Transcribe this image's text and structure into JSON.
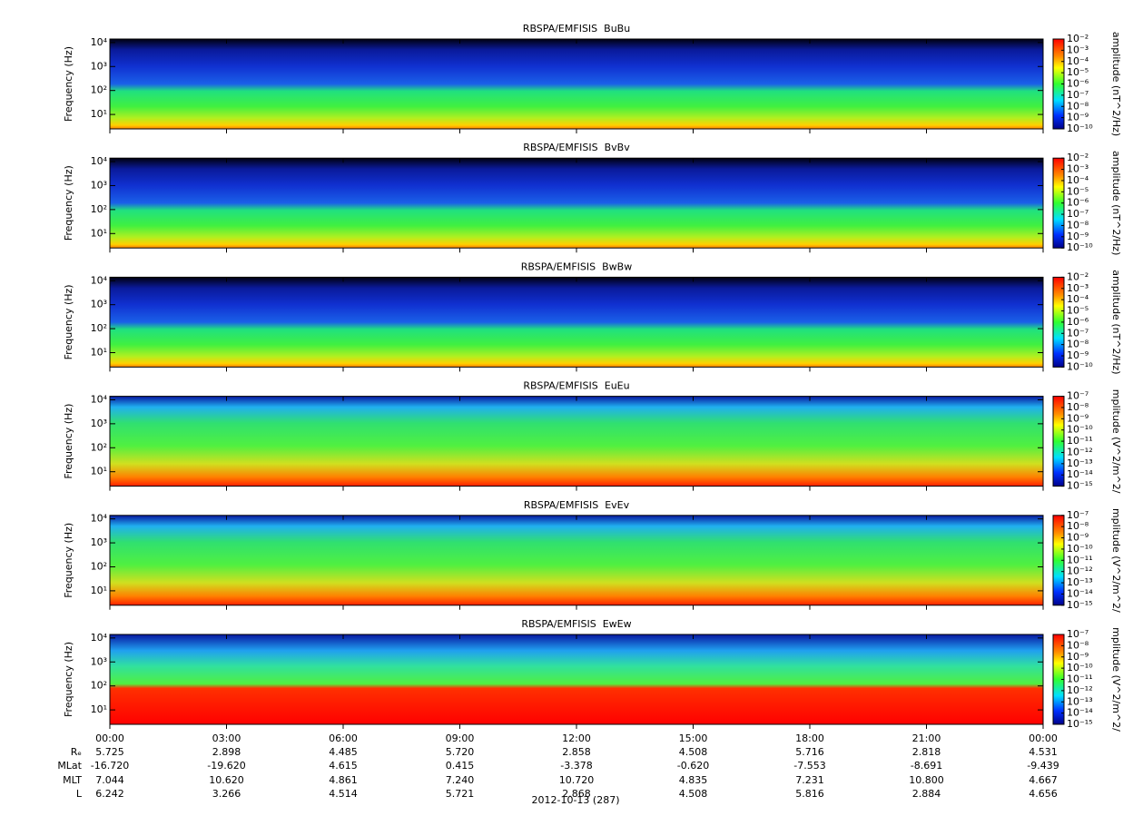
{
  "chart_data": [
    {
      "type": "spectrogram",
      "title": "RBSPA/EMFISIS  BuBu",
      "ylabel": "Frequency (Hz)",
      "log_y": true,
      "ylim": [
        2.5,
        14000
      ],
      "yticks": [
        {
          "value": 10,
          "label": "10¹"
        },
        {
          "value": 100,
          "label": "10²"
        },
        {
          "value": 1000,
          "label": "10³"
        },
        {
          "value": 10000,
          "label": "10⁴"
        }
      ],
      "zlim": [
        1e-10,
        0.01
      ],
      "zlabel": "amplitude (nT^2/Hz)",
      "zticks": [
        {
          "value": 0.01,
          "label": "10⁻²"
        },
        {
          "value": 0.001,
          "label": "10⁻³"
        },
        {
          "value": 0.0001,
          "label": "10⁻⁴"
        },
        {
          "value": 1e-05,
          "label": "10⁻⁵"
        },
        {
          "value": 1e-06,
          "label": "10⁻⁶"
        },
        {
          "value": 1e-07,
          "label": "10⁻⁷"
        },
        {
          "value": 1e-08,
          "label": "10⁻⁸"
        },
        {
          "value": 1e-09,
          "label": "10⁻⁹"
        },
        {
          "value": 1e-10,
          "label": "10⁻¹⁰"
        }
      ]
    },
    {
      "type": "spectrogram",
      "title": "RBSPA/EMFISIS  BvBv",
      "ylabel": "Frequency (Hz)",
      "log_y": true,
      "ylim": [
        2.5,
        14000
      ],
      "yticks": [
        {
          "value": 10,
          "label": "10¹"
        },
        {
          "value": 100,
          "label": "10²"
        },
        {
          "value": 1000,
          "label": "10³"
        },
        {
          "value": 10000,
          "label": "10⁴"
        }
      ],
      "zlim": [
        1e-10,
        0.01
      ],
      "zlabel": "amplitude (nT^2/Hz)",
      "zticks": [
        {
          "value": 0.01,
          "label": "10⁻²"
        },
        {
          "value": 0.001,
          "label": "10⁻³"
        },
        {
          "value": 0.0001,
          "label": "10⁻⁴"
        },
        {
          "value": 1e-05,
          "label": "10⁻⁵"
        },
        {
          "value": 1e-06,
          "label": "10⁻⁶"
        },
        {
          "value": 1e-07,
          "label": "10⁻⁷"
        },
        {
          "value": 1e-08,
          "label": "10⁻⁸"
        },
        {
          "value": 1e-09,
          "label": "10⁻⁹"
        },
        {
          "value": 1e-10,
          "label": "10⁻¹⁰"
        }
      ]
    },
    {
      "type": "spectrogram",
      "title": "RBSPA/EMFISIS  BwBw",
      "ylabel": "Frequency (Hz)",
      "log_y": true,
      "ylim": [
        2.5,
        14000
      ],
      "yticks": [
        {
          "value": 10,
          "label": "10¹"
        },
        {
          "value": 100,
          "label": "10²"
        },
        {
          "value": 1000,
          "label": "10³"
        },
        {
          "value": 10000,
          "label": "10⁴"
        }
      ],
      "zlim": [
        1e-10,
        0.01
      ],
      "zlabel": "amplitude (nT^2/Hz)",
      "zticks": [
        {
          "value": 0.01,
          "label": "10⁻²"
        },
        {
          "value": 0.001,
          "label": "10⁻³"
        },
        {
          "value": 0.0001,
          "label": "10⁻⁴"
        },
        {
          "value": 1e-05,
          "label": "10⁻⁵"
        },
        {
          "value": 1e-06,
          "label": "10⁻⁶"
        },
        {
          "value": 1e-07,
          "label": "10⁻⁷"
        },
        {
          "value": 1e-08,
          "label": "10⁻⁸"
        },
        {
          "value": 1e-09,
          "label": "10⁻⁹"
        },
        {
          "value": 1e-10,
          "label": "10⁻¹⁰"
        }
      ]
    },
    {
      "type": "spectrogram",
      "title": "RBSPA/EMFISIS  EuEu",
      "ylabel": "Frequency (Hz)",
      "log_y": true,
      "ylim": [
        2.5,
        14000
      ],
      "yticks": [
        {
          "value": 10,
          "label": "10¹"
        },
        {
          "value": 100,
          "label": "10²"
        },
        {
          "value": 1000,
          "label": "10³"
        },
        {
          "value": 10000,
          "label": "10⁴"
        }
      ],
      "zlim": [
        1e-15,
        1e-07
      ],
      "zlabel": "mplitude (V^2/m^2/",
      "zticks": [
        {
          "value": 1e-07,
          "label": "10⁻⁷"
        },
        {
          "value": 1e-08,
          "label": "10⁻⁸"
        },
        {
          "value": 1e-09,
          "label": "10⁻⁹"
        },
        {
          "value": 1e-10,
          "label": "10⁻¹⁰"
        },
        {
          "value": 1e-11,
          "label": "10⁻¹¹"
        },
        {
          "value": 1e-12,
          "label": "10⁻¹²"
        },
        {
          "value": 1e-13,
          "label": "10⁻¹³"
        },
        {
          "value": 1e-14,
          "label": "10⁻¹⁴"
        },
        {
          "value": 1e-15,
          "label": "10⁻¹⁵"
        }
      ]
    },
    {
      "type": "spectrogram",
      "title": "RBSPA/EMFISIS  EvEv",
      "ylabel": "Frequency (Hz)",
      "log_y": true,
      "ylim": [
        2.5,
        14000
      ],
      "yticks": [
        {
          "value": 10,
          "label": "10¹"
        },
        {
          "value": 100,
          "label": "10²"
        },
        {
          "value": 1000,
          "label": "10³"
        },
        {
          "value": 10000,
          "label": "10⁴"
        }
      ],
      "zlim": [
        1e-15,
        1e-07
      ],
      "zlabel": "mplitude (V^2/m^2/",
      "zticks": [
        {
          "value": 1e-07,
          "label": "10⁻⁷"
        },
        {
          "value": 1e-08,
          "label": "10⁻⁸"
        },
        {
          "value": 1e-09,
          "label": "10⁻⁹"
        },
        {
          "value": 1e-10,
          "label": "10⁻¹⁰"
        },
        {
          "value": 1e-11,
          "label": "10⁻¹¹"
        },
        {
          "value": 1e-12,
          "label": "10⁻¹²"
        },
        {
          "value": 1e-13,
          "label": "10⁻¹³"
        },
        {
          "value": 1e-14,
          "label": "10⁻¹⁴"
        },
        {
          "value": 1e-15,
          "label": "10⁻¹⁵"
        }
      ]
    },
    {
      "type": "spectrogram",
      "title": "RBSPA/EMFISIS  EwEw",
      "ylabel": "Frequency (Hz)",
      "log_y": true,
      "ylim": [
        2.5,
        14000
      ],
      "yticks": [
        {
          "value": 10,
          "label": "10¹"
        },
        {
          "value": 100,
          "label": "10²"
        },
        {
          "value": 1000,
          "label": "10³"
        },
        {
          "value": 10000,
          "label": "10⁴"
        }
      ],
      "zlim": [
        1e-15,
        1e-07
      ],
      "zlabel": "mplitude (V^2/m^2/",
      "zticks": [
        {
          "value": 1e-07,
          "label": "10⁻⁷"
        },
        {
          "value": 1e-08,
          "label": "10⁻⁸"
        },
        {
          "value": 1e-09,
          "label": "10⁻⁹"
        },
        {
          "value": 1e-10,
          "label": "10⁻¹⁰"
        },
        {
          "value": 1e-11,
          "label": "10⁻¹¹"
        },
        {
          "value": 1e-12,
          "label": "10⁻¹²"
        },
        {
          "value": 1e-13,
          "label": "10⁻¹³"
        },
        {
          "value": 1e-14,
          "label": "10⁻¹⁴"
        },
        {
          "value": 1e-15,
          "label": "10⁻¹⁵"
        }
      ]
    }
  ],
  "time_axis": {
    "xlim": [
      0,
      24
    ],
    "xticks": [
      {
        "value": 0,
        "label": "00:00"
      },
      {
        "value": 3,
        "label": "03:00"
      },
      {
        "value": 6,
        "label": "06:00"
      },
      {
        "value": 9,
        "label": "09:00"
      },
      {
        "value": 12,
        "label": "12:00"
      },
      {
        "value": 15,
        "label": "15:00"
      },
      {
        "value": 18,
        "label": "18:00"
      },
      {
        "value": 21,
        "label": "21:00"
      },
      {
        "value": 24,
        "label": "00:00"
      }
    ],
    "ephemeris": [
      {
        "name": "Rₑ",
        "values": [
          "5.725",
          "2.898",
          "4.485",
          "5.720",
          "2.858",
          "4.508",
          "5.716",
          "2.818",
          "4.531"
        ]
      },
      {
        "name": "MLat",
        "values": [
          "-16.720",
          "-19.620",
          "4.615",
          "0.415",
          "-3.378",
          "-0.620",
          "-7.553",
          "-8.691",
          "-9.439"
        ]
      },
      {
        "name": "MLT",
        "values": [
          "7.044",
          "10.620",
          "4.861",
          "7.240",
          "10.720",
          "4.835",
          "7.231",
          "10.800",
          "4.667"
        ]
      },
      {
        "name": "L",
        "values": [
          "6.242",
          "3.266",
          "4.514",
          "5.721",
          "2.868",
          "4.508",
          "5.816",
          "2.884",
          "4.656"
        ]
      }
    ],
    "date": "2012-10-13 (287)"
  }
}
